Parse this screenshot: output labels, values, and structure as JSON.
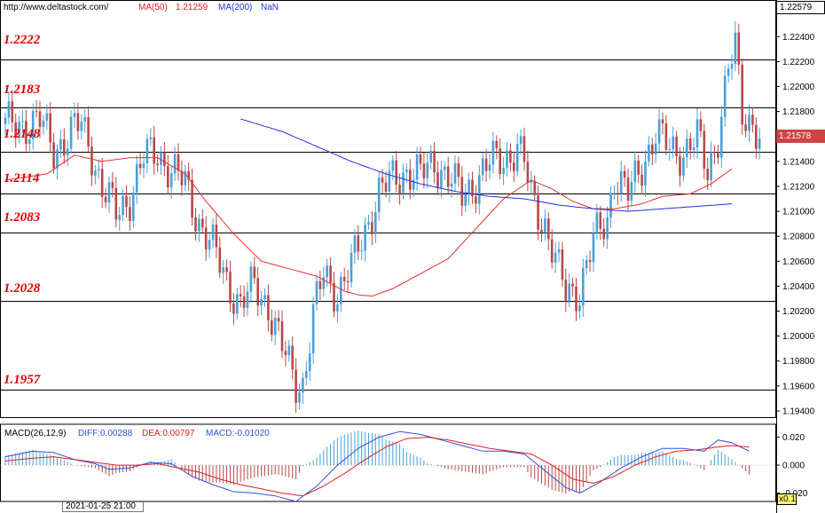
{
  "header": {
    "site": "http://www.deltastock.com/",
    "ma50_label": "MA(50)",
    "ma50_value": "1.21259",
    "ma200_label": "MA(200)",
    "ma200_value": "NaN"
  },
  "macd_header": {
    "name": "MACD(26,12,9)",
    "diff": "DIFF:0.00288",
    "dea": "DEA:0.00797",
    "macd": "MACD:-0.01020"
  },
  "levels": [
    "1.2222",
    "1.2183",
    "1.2148",
    "1.2114",
    "1.2083",
    "1.2028",
    "1.1957"
  ],
  "price_axis": {
    "top_value": "1.22579",
    "current_value": "1.21578",
    "ticks": [
      "1.22400",
      "1.22200",
      "1.22000",
      "1.21800",
      "1.21600",
      "1.21400",
      "1.21200",
      "1.21000",
      "1.20800",
      "1.20600",
      "1.20400",
      "1.20200",
      "1.20000",
      "1.19800",
      "1.19600",
      "1.19400"
    ]
  },
  "macd_axis": {
    "ticks": [
      "0.020",
      "0.000",
      "-0.020"
    ]
  },
  "time_label": "2021-01-25 21:00",
  "zoom_label": "x0.1",
  "colors": {
    "up": "#4aa0d8",
    "down": "#b84848",
    "ma50": "#e83030",
    "ma200": "#2030e0",
    "level_text": "#e00000",
    "diff_line": "#3050e0",
    "dea_line": "#e02020"
  },
  "chart_data": {
    "type": "candlestick",
    "ylim": [
      1.1935,
      1.2258
    ],
    "macd_ylim": [
      -0.026,
      0.028
    ],
    "horizontal_levels": [
      1.2222,
      1.2183,
      1.2148,
      1.2114,
      1.2083,
      1.2028,
      1.1957
    ],
    "price_keypoints": [
      [
        0,
        1.2168
      ],
      [
        10,
        1.2172
      ],
      [
        14,
        1.215
      ],
      [
        18,
        1.216
      ],
      [
        22,
        1.217
      ],
      [
        25,
        1.2148
      ],
      [
        28,
        1.2118
      ],
      [
        32,
        1.2098
      ],
      [
        36,
        1.2112
      ],
      [
        40,
        1.2142
      ],
      [
        44,
        1.2148
      ],
      [
        48,
        1.2132
      ],
      [
        52,
        1.2122
      ],
      [
        56,
        1.2092
      ],
      [
        60,
        1.207
      ],
      [
        64,
        1.2045
      ],
      [
        68,
        1.2025
      ],
      [
        72,
        1.204
      ],
      [
        76,
        1.2025
      ],
      [
        80,
        1.199
      ],
      [
        84,
        1.1963
      ],
      [
        86,
        1.1962
      ],
      [
        89,
        1.2015
      ],
      [
        92,
        1.205
      ],
      [
        96,
        1.2035
      ],
      [
        100,
        1.2055
      ],
      [
        104,
        1.2085
      ],
      [
        108,
        1.2115
      ],
      [
        112,
        1.2125
      ],
      [
        116,
        1.2133
      ],
      [
        120,
        1.2128
      ],
      [
        124,
        1.214
      ],
      [
        128,
        1.2128
      ],
      [
        132,
        1.2112
      ],
      [
        136,
        1.2125
      ],
      [
        140,
        1.2138
      ],
      [
        144,
        1.2143
      ],
      [
        148,
        1.215
      ],
      [
        150,
        1.2138
      ],
      [
        152,
        1.2112
      ],
      [
        156,
        1.209
      ],
      [
        160,
        1.205
      ],
      [
        162,
        1.2035
      ],
      [
        166,
        1.2038
      ],
      [
        170,
        1.2075
      ],
      [
        174,
        1.2095
      ],
      [
        176,
        1.213
      ],
      [
        180,
        1.2112
      ],
      [
        184,
        1.2138
      ],
      [
        188,
        1.2162
      ],
      [
        192,
        1.215
      ],
      [
        196,
        1.2148
      ],
      [
        200,
        1.2158
      ],
      [
        203,
        1.2132
      ],
      [
        206,
        1.2162
      ],
      [
        209,
        1.2212
      ],
      [
        211,
        1.223
      ],
      [
        213,
        1.218
      ],
      [
        216,
        1.2172
      ],
      [
        218,
        1.2158
      ]
    ],
    "ma50_keypoints": [
      [
        0,
        1.2125
      ],
      [
        12,
        1.213
      ],
      [
        20,
        1.2145
      ],
      [
        28,
        1.214
      ],
      [
        36,
        1.2143
      ],
      [
        44,
        1.2143
      ],
      [
        52,
        1.213
      ],
      [
        58,
        1.2108
      ],
      [
        66,
        1.2082
      ],
      [
        74,
        1.206
      ],
      [
        82,
        1.2054
      ],
      [
        90,
        1.2048
      ],
      [
        98,
        1.2036
      ],
      [
        102,
        1.2033
      ],
      [
        106,
        1.2032
      ],
      [
        112,
        1.2038
      ],
      [
        120,
        1.205
      ],
      [
        128,
        1.2062
      ],
      [
        136,
        1.2086
      ],
      [
        144,
        1.211
      ],
      [
        152,
        1.2125
      ],
      [
        158,
        1.2118
      ],
      [
        164,
        1.2108
      ],
      [
        170,
        1.2102
      ],
      [
        176,
        1.2102
      ],
      [
        184,
        1.2106
      ],
      [
        190,
        1.2112
      ],
      [
        198,
        1.2114
      ],
      [
        204,
        1.2122
      ],
      [
        210,
        1.2134
      ]
    ],
    "ma200_keypoints": [
      [
        68,
        1.2174
      ],
      [
        80,
        1.2164
      ],
      [
        90,
        1.2152
      ],
      [
        100,
        1.214
      ],
      [
        110,
        1.213
      ],
      [
        120,
        1.2122
      ],
      [
        130,
        1.2116
      ],
      [
        140,
        1.2112
      ],
      [
        150,
        1.211
      ],
      [
        160,
        1.2105
      ],
      [
        170,
        1.2102
      ],
      [
        180,
        1.21
      ],
      [
        190,
        1.2102
      ],
      [
        200,
        1.2104
      ],
      [
        210,
        1.2106
      ]
    ],
    "diff_keypoints": [
      [
        0,
        0.006
      ],
      [
        8,
        0.01
      ],
      [
        14,
        0.009
      ],
      [
        20,
        0.004
      ],
      [
        26,
        0.001
      ],
      [
        30,
        -0.003
      ],
      [
        36,
        -0.002
      ],
      [
        42,
        0.002
      ],
      [
        48,
        0.001
      ],
      [
        54,
        -0.008
      ],
      [
        60,
        -0.014
      ],
      [
        66,
        -0.019
      ],
      [
        72,
        -0.02
      ],
      [
        78,
        -0.022
      ],
      [
        84,
        -0.026
      ],
      [
        90,
        -0.015
      ],
      [
        96,
        0.0
      ],
      [
        102,
        0.012
      ],
      [
        108,
        0.02
      ],
      [
        114,
        0.024
      ],
      [
        120,
        0.022
      ],
      [
        126,
        0.018
      ],
      [
        132,
        0.014
      ],
      [
        138,
        0.01
      ],
      [
        144,
        0.01
      ],
      [
        150,
        0.008
      ],
      [
        156,
        -0.004
      ],
      [
        162,
        -0.016
      ],
      [
        166,
        -0.02
      ],
      [
        172,
        -0.012
      ],
      [
        178,
        -0.002
      ],
      [
        184,
        0.006
      ],
      [
        190,
        0.012
      ],
      [
        196,
        0.012
      ],
      [
        202,
        0.01
      ],
      [
        206,
        0.018
      ],
      [
        210,
        0.016
      ],
      [
        215,
        0.01
      ]
    ],
    "dea_keypoints": [
      [
        0,
        0.003
      ],
      [
        8,
        0.005
      ],
      [
        14,
        0.006
      ],
      [
        20,
        0.004
      ],
      [
        26,
        0.002
      ],
      [
        32,
        0.0
      ],
      [
        38,
        0.0
      ],
      [
        44,
        0.001
      ],
      [
        50,
        -0.002
      ],
      [
        56,
        -0.005
      ],
      [
        62,
        -0.01
      ],
      [
        68,
        -0.014
      ],
      [
        74,
        -0.017
      ],
      [
        80,
        -0.02
      ],
      [
        86,
        -0.022
      ],
      [
        92,
        -0.015
      ],
      [
        98,
        -0.006
      ],
      [
        104,
        0.004
      ],
      [
        110,
        0.013
      ],
      [
        116,
        0.019
      ],
      [
        122,
        0.02
      ],
      [
        128,
        0.018
      ],
      [
        134,
        0.015
      ],
      [
        140,
        0.012
      ],
      [
        146,
        0.01
      ],
      [
        152,
        0.008
      ],
      [
        158,
        0.0
      ],
      [
        164,
        -0.01
      ],
      [
        170,
        -0.013
      ],
      [
        176,
        -0.008
      ],
      [
        182,
        0.0
      ],
      [
        188,
        0.006
      ],
      [
        194,
        0.01
      ],
      [
        200,
        0.011
      ],
      [
        206,
        0.013
      ],
      [
        210,
        0.014
      ],
      [
        215,
        0.013
      ]
    ]
  }
}
